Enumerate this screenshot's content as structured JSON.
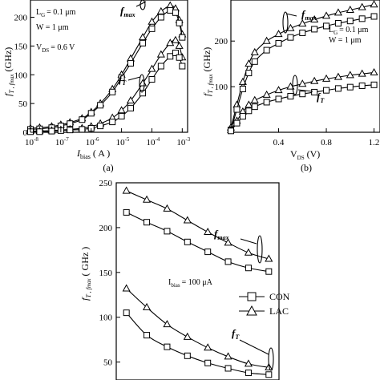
{
  "chart_data": [
    {
      "id": "a",
      "type": "line",
      "panel_label": "(a)",
      "xlabel": "I",
      "xlabel_sub": "bias",
      "xlabel_unit": "( A )",
      "ylabel": "f",
      "ylabel_rest": "T , f",
      "ylabel_sub2": "max",
      "ylabel_unit": "(GHz)",
      "xscale": "log",
      "xlim": [
        1e-08,
        0.0015
      ],
      "ylim": [
        0,
        230
      ],
      "xticks": [
        1e-08,
        1e-07,
        1e-06,
        1e-05,
        0.0001,
        0.001
      ],
      "xtick_exponents": [
        "-8",
        "-7",
        "-6",
        "-5",
        "-4",
        "-3"
      ],
      "xtick_base": "10",
      "yticks": [
        0,
        50,
        100,
        150,
        200
      ],
      "ytick_labels": [
        "0",
        "50",
        "100",
        "150",
        "200"
      ],
      "annotations": [
        "L",
        "G",
        "= 0.1 μm",
        "W = 1 μm",
        "V",
        "DS",
        "= 0.6 V"
      ],
      "series_labels": {
        "fmax": "f",
        "fmax_sub": "max",
        "ft": "f",
        "ft_sub": "T"
      },
      "series": [
        {
          "marker": "triangle",
          "x": [
            1e-08,
            2e-08,
            5e-08,
            1e-07,
            2e-07,
            5e-07,
            1e-06,
            2e-06,
            5e-06,
            1e-05,
            2e-05,
            5e-05,
            0.0001,
            0.0002,
            0.0004,
            0.0006,
            0.0008,
            0.001
          ],
          "values": [
            7,
            8,
            10,
            13,
            17,
            24,
            35,
            50,
            75,
            100,
            128,
            165,
            192,
            210,
            220,
            215,
            195,
            170
          ]
        },
        {
          "marker": "square",
          "x": [
            1e-08,
            2e-08,
            5e-08,
            1e-07,
            2e-07,
            5e-07,
            1e-06,
            2e-06,
            5e-06,
            1e-05,
            2e-05,
            5e-05,
            0.0001,
            0.0002,
            0.0004,
            0.0006,
            0.0008,
            0.001
          ],
          "values": [
            5,
            6,
            8,
            11,
            15,
            22,
            33,
            47,
            70,
            95,
            120,
            155,
            180,
            200,
            212,
            208,
            190,
            165
          ]
        },
        {
          "marker": "triangle",
          "x": [
            1e-08,
            2e-08,
            5e-08,
            1e-07,
            2e-07,
            5e-07,
            1e-06,
            2e-06,
            5e-06,
            1e-05,
            2e-05,
            5e-05,
            0.0001,
            0.0002,
            0.0004,
            0.0006,
            0.0008,
            0.001
          ],
          "values": [
            2,
            2,
            3,
            4,
            5,
            7,
            10,
            15,
            25,
            38,
            55,
            85,
            110,
            135,
            155,
            160,
            150,
            130
          ]
        },
        {
          "marker": "square",
          "x": [
            1e-08,
            2e-08,
            5e-08,
            1e-07,
            2e-07,
            5e-07,
            1e-06,
            2e-06,
            5e-06,
            1e-05,
            2e-05,
            5e-05,
            0.0001,
            0.0002,
            0.0004,
            0.0006,
            0.0008,
            0.001
          ],
          "values": [
            1,
            1,
            2,
            3,
            4,
            5,
            7,
            11,
            18,
            28,
            42,
            68,
            92,
            115,
            132,
            138,
            130,
            115
          ]
        }
      ]
    },
    {
      "id": "b",
      "type": "line",
      "panel_label": "(b)",
      "xlabel": "V",
      "xlabel_sub": "DS",
      "xlabel_unit": "(V)",
      "ylabel": "f",
      "ylabel_rest": "T , f",
      "ylabel_sub2": "max",
      "ylabel_unit": "(GHz)",
      "xlim": [
        0,
        1.25
      ],
      "ylim": [
        0,
        290
      ],
      "xticks": [
        0.4,
        0.8,
        1.2
      ],
      "xtick_labels": [
        "0.4",
        "0.8",
        "1.2"
      ],
      "yticks": [
        100,
        200
      ],
      "ytick_labels": [
        "100",
        "200"
      ],
      "annotations": [
        "L",
        "G",
        "= 0.1 μm",
        "W = 1 μm"
      ],
      "series_labels": {
        "fmax": "f",
        "fmax_sub": "max",
        "ft": "f",
        "ft_sub": "T"
      },
      "series": [
        {
          "marker": "triangle",
          "x": [
            0.0,
            0.05,
            0.1,
            0.15,
            0.2,
            0.3,
            0.4,
            0.5,
            0.6,
            0.7,
            0.8,
            0.9,
            1.0,
            1.1,
            1.2
          ],
          "values": [
            10,
            60,
            110,
            150,
            175,
            200,
            215,
            228,
            238,
            247,
            255,
            262,
            268,
            274,
            280
          ]
        },
        {
          "marker": "square",
          "x": [
            0.0,
            0.05,
            0.1,
            0.15,
            0.2,
            0.3,
            0.4,
            0.5,
            0.6,
            0.7,
            0.8,
            0.9,
            1.0,
            1.1,
            1.2
          ],
          "values": [
            5,
            50,
            95,
            130,
            155,
            180,
            195,
            208,
            218,
            226,
            233,
            239,
            244,
            249,
            254
          ]
        },
        {
          "marker": "triangle",
          "x": [
            0.0,
            0.05,
            0.1,
            0.15,
            0.2,
            0.3,
            0.4,
            0.5,
            0.6,
            0.7,
            0.8,
            0.9,
            1.0,
            1.1,
            1.2
          ],
          "values": [
            5,
            25,
            45,
            60,
            70,
            82,
            92,
            100,
            106,
            112,
            117,
            121,
            125,
            128,
            131
          ]
        },
        {
          "marker": "square",
          "x": [
            0.0,
            0.05,
            0.1,
            0.15,
            0.2,
            0.3,
            0.4,
            0.5,
            0.6,
            0.7,
            0.8,
            0.9,
            1.0,
            1.1,
            1.2
          ],
          "values": [
            3,
            20,
            35,
            47,
            56,
            66,
            73,
            79,
            84,
            88,
            92,
            96,
            99,
            102,
            104
          ]
        }
      ]
    },
    {
      "id": "c",
      "type": "line",
      "ylabel": "f",
      "ylabel_rest": "T , f",
      "ylabel_sub2": "max",
      "ylabel_unit": "( GHz )",
      "ylim": [
        30,
        250
      ],
      "xlim": [
        0,
        8
      ],
      "yticks": [
        50,
        100,
        150,
        200,
        250
      ],
      "ytick_labels": [
        "50",
        "100",
        "150",
        "200",
        "250"
      ],
      "annotations": [
        "I",
        "bias",
        "= 100 μA"
      ],
      "legend_position": "middle-right",
      "series_labels": {
        "fmax": "f",
        "fmax_sub": "max",
        "ft": "f",
        "ft_sub": "T"
      },
      "series": [
        {
          "name": "LAC",
          "marker": "triangle",
          "x": [
            0.5,
            1.5,
            2.5,
            3.5,
            4.5,
            5.5,
            6.5,
            7.5
          ],
          "values": [
            241,
            231,
            221,
            208,
            195,
            183,
            172,
            165
          ]
        },
        {
          "name": "CON",
          "marker": "square",
          "x": [
            0.5,
            1.5,
            2.5,
            3.5,
            4.5,
            5.5,
            6.5,
            7.5
          ],
          "values": [
            217,
            206,
            196,
            184,
            173,
            162,
            155,
            151
          ]
        },
        {
          "name": "LAC",
          "marker": "triangle",
          "x": [
            0.5,
            1.5,
            2.5,
            3.5,
            4.5,
            5.5,
            6.5,
            7.5
          ],
          "values": [
            132,
            111,
            92,
            78,
            66,
            56,
            48,
            44
          ]
        },
        {
          "name": "CON",
          "marker": "square",
          "x": [
            0.5,
            1.5,
            2.5,
            3.5,
            4.5,
            5.5,
            6.5,
            7.5
          ],
          "values": [
            105,
            80,
            67,
            57,
            49,
            43,
            38,
            36
          ]
        }
      ],
      "legend": [
        {
          "label": "CON",
          "marker": "square"
        },
        {
          "label": "LAC",
          "marker": "triangle"
        }
      ]
    }
  ]
}
